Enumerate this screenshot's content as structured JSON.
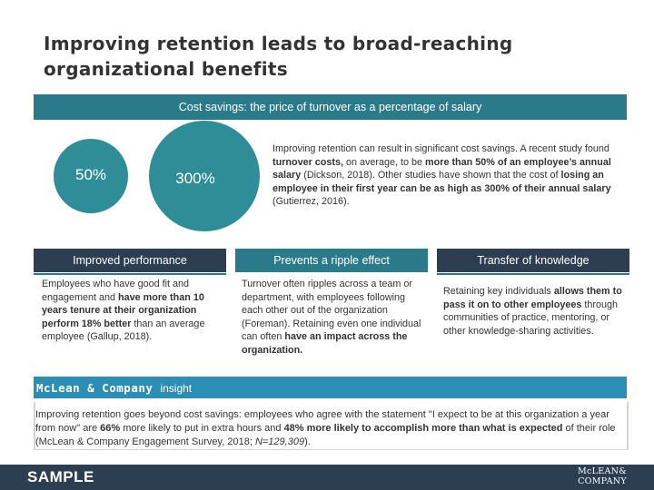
{
  "slide": {
    "title_line1": "Improving retention leads to broad-reaching",
    "title_line2": "organizational benefits"
  },
  "cost_section": {
    "banner": "Cost savings: the price of turnover as a percentage of salary",
    "small_circle_value": "50%",
    "big_circle_value": "300%",
    "paragraph": [
      {
        "t": "Improving retention can result in significant cost savings. A recent study found "
      },
      {
        "t": "turnover costs,",
        "b": true
      },
      {
        "t": " on average, to be "
      },
      {
        "t": "more than 50% of an employee’s annual salary",
        "b": true
      },
      {
        "t": " (Dickson, 2018). Other studies have shown that the cost of "
      },
      {
        "t": "losing an employee in their first year can be as high as 300% of their annual salary",
        "b": true
      },
      {
        "t": " (Gutierrez, 2016)."
      }
    ]
  },
  "columns": [
    {
      "header": "Improved performance",
      "paragraph": [
        {
          "t": "Employees who have good fit and engagement and "
        },
        {
          "t": "have more than 10 years tenure at their organization perform 18% better",
          "b": true
        },
        {
          "t": " than an average employee (Gallup, 2018)."
        }
      ]
    },
    {
      "header": "Prevents a ripple effect",
      "paragraph": [
        {
          "t": "Turnover often ripples across a team or department, with employees following each other out of the organization (Foreman). Retaining even one individual can often "
        },
        {
          "t": "have an impact across the organization.",
          "b": true
        }
      ]
    },
    {
      "header": "Transfer of knowledge",
      "paragraph": [
        {
          "t": "Retaining key individuals "
        },
        {
          "t": "allows them to pass it on to other employees",
          "b": true
        },
        {
          "t": " through communities of practice, mentoring, or other knowledge-sharing activities."
        }
      ]
    }
  ],
  "insight": {
    "brand": "McLean & Company",
    "label": "insight",
    "paragraph": [
      {
        "t": "Improving retention goes beyond cost savings: employees who agree with the statement \"I expect to be at this organization a year from now\" are "
      },
      {
        "t": "66%",
        "b": true
      },
      {
        "t": " more likely to put in extra hours and "
      },
      {
        "t": "48% more likely to accomplish more than what is expected",
        "b": true
      },
      {
        "t": " of their role (McLean & Company Engagement Survey, 2018; "
      },
      {
        "t": "N=129,309",
        "i": true
      },
      {
        "t": ")."
      }
    ]
  },
  "footer": {
    "sample_label": "SAMPLE",
    "logo_line1": "McLEAN&",
    "logo_line2": "COMPANY"
  },
  "colors": {
    "teal": "#2b7a8a",
    "circle": "#2f8d98",
    "navy": "#2c3e50",
    "insight_blue": "#2b8fb5"
  }
}
